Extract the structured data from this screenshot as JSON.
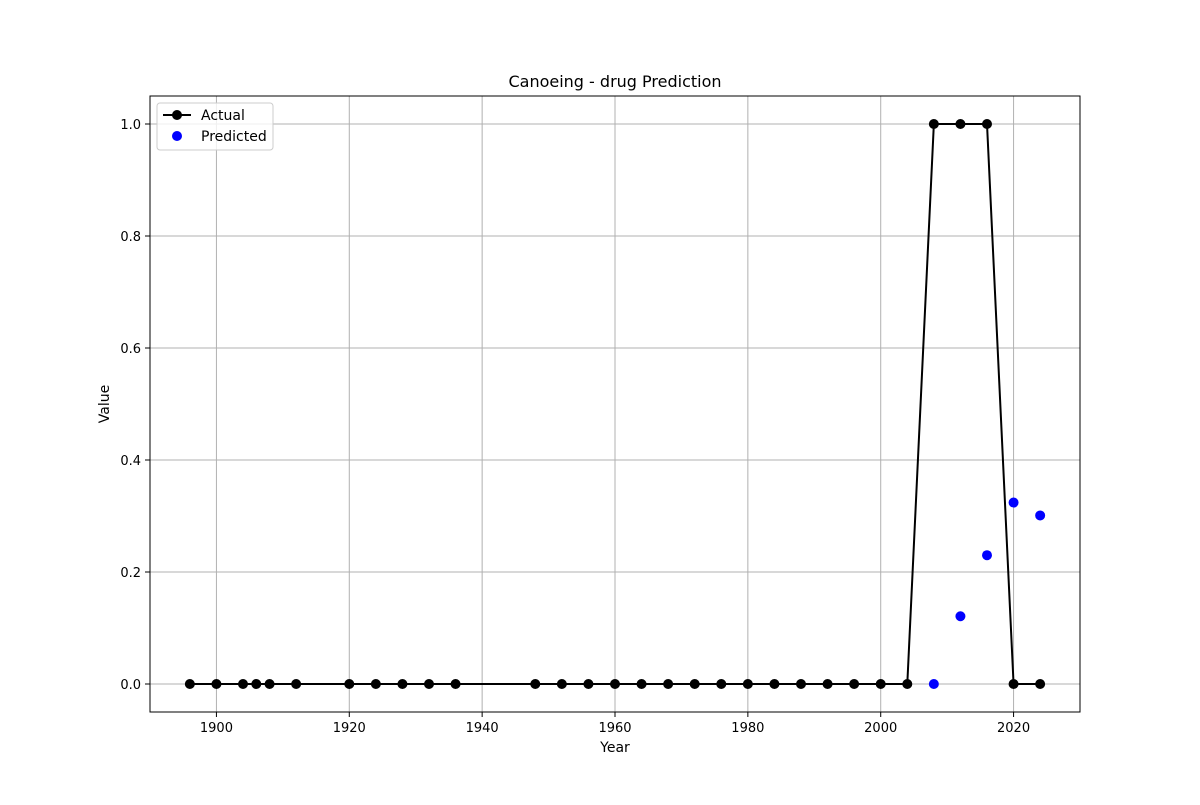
{
  "chart_data": {
    "type": "line",
    "title": "Canoeing - drug Prediction",
    "xlabel": "Year",
    "ylabel": "Value",
    "xlim": [
      1890,
      2030
    ],
    "ylim": [
      -0.05,
      1.05
    ],
    "xticks": [
      1900,
      1920,
      1940,
      1960,
      1980,
      2000,
      2020
    ],
    "yticks": [
      0.0,
      0.2,
      0.4,
      0.6,
      0.8,
      1.0
    ],
    "ytick_labels": [
      "0.0",
      "0.2",
      "0.4",
      "0.6",
      "0.8",
      "1.0"
    ],
    "grid": true,
    "legend_position": "top-left",
    "series": [
      {
        "name": "Actual",
        "kind": "line-with-markers",
        "color": "#000000",
        "x": [
          1896,
          1900,
          1904,
          1906,
          1908,
          1912,
          1920,
          1924,
          1928,
          1932,
          1936,
          1948,
          1952,
          1956,
          1960,
          1964,
          1968,
          1972,
          1976,
          1980,
          1984,
          1988,
          1992,
          1996,
          2000,
          2004,
          2008,
          2012,
          2016,
          2020,
          2024
        ],
        "y": [
          0,
          0,
          0,
          0,
          0,
          0,
          0,
          0,
          0,
          0,
          0,
          0,
          0,
          0,
          0,
          0,
          0,
          0,
          0,
          0,
          0,
          0,
          0,
          0,
          0,
          0,
          1,
          1,
          1,
          0,
          0
        ]
      },
      {
        "name": "Predicted",
        "kind": "scatter",
        "color": "#0000ff",
        "x": [
          2008,
          2012,
          2016,
          2020,
          2024
        ],
        "y": [
          0.0,
          0.121,
          0.23,
          0.324,
          0.301
        ]
      }
    ]
  }
}
